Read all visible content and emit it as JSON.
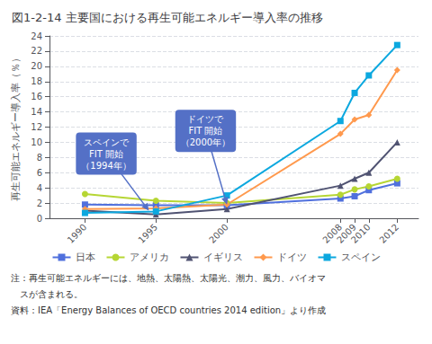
{
  "chart_data": {
    "type": "line",
    "title": "図1-2-14 主要国における再生可能エネルギー導入率の推移",
    "ylabel": "再生可能エネルギー導入率（％）",
    "x": [
      1990,
      1995,
      2000,
      2008,
      2009,
      2010,
      2012
    ],
    "xlim": [
      1987.5,
      2013.5
    ],
    "xticks": [
      1990,
      1995,
      2000,
      2008,
      2009,
      2010,
      2012
    ],
    "ylim": [
      0,
      24
    ],
    "yticks": [
      0,
      2,
      4,
      6,
      8,
      10,
      12,
      14,
      16,
      18,
      20,
      22,
      24
    ],
    "grid": true,
    "legend": "bottom",
    "series": [
      {
        "name": "日本",
        "marker": "square",
        "values": [
          1.8,
          1.7,
          1.7,
          2.6,
          2.9,
          3.7,
          4.6
        ]
      },
      {
        "name": "アメリカ",
        "marker": "circle",
        "values": [
          3.2,
          2.3,
          2.0,
          3.1,
          3.8,
          4.2,
          5.2
        ]
      },
      {
        "name": "イギリス",
        "marker": "triangle",
        "values": [
          1.0,
          0.5,
          1.2,
          4.3,
          5.2,
          6.0,
          10.0
        ]
      },
      {
        "name": "ドイツ",
        "marker": "diamond",
        "values": [
          1.2,
          1.3,
          1.8,
          11.1,
          13.0,
          13.6,
          19.5
        ]
      },
      {
        "name": "スペイン",
        "marker": "square",
        "values": [
          0.7,
          0.9,
          3.0,
          12.8,
          16.5,
          18.8,
          22.8
        ]
      }
    ],
    "annotations": [
      {
        "text": "スペインで\nFIT 開始\n（1994年）",
        "x": 1994.5,
        "y": 1.0,
        "text_x": 1991.5,
        "text_y": 8.5
      },
      {
        "text": "ドイツで\nFIT 開始\n（2000年）",
        "x": 2000,
        "y": 1.8,
        "text_x": 1998.5,
        "text_y": 11.5
      }
    ],
    "notes": [
      "注：再生可能エネルギーには、地熱、太陽熱、太陽光、潮力、風力、バイオマ",
      "　スが含まれる。",
      "資料：IEA「Energy Balances of OECD countries 2014 edition」より作成"
    ]
  }
}
